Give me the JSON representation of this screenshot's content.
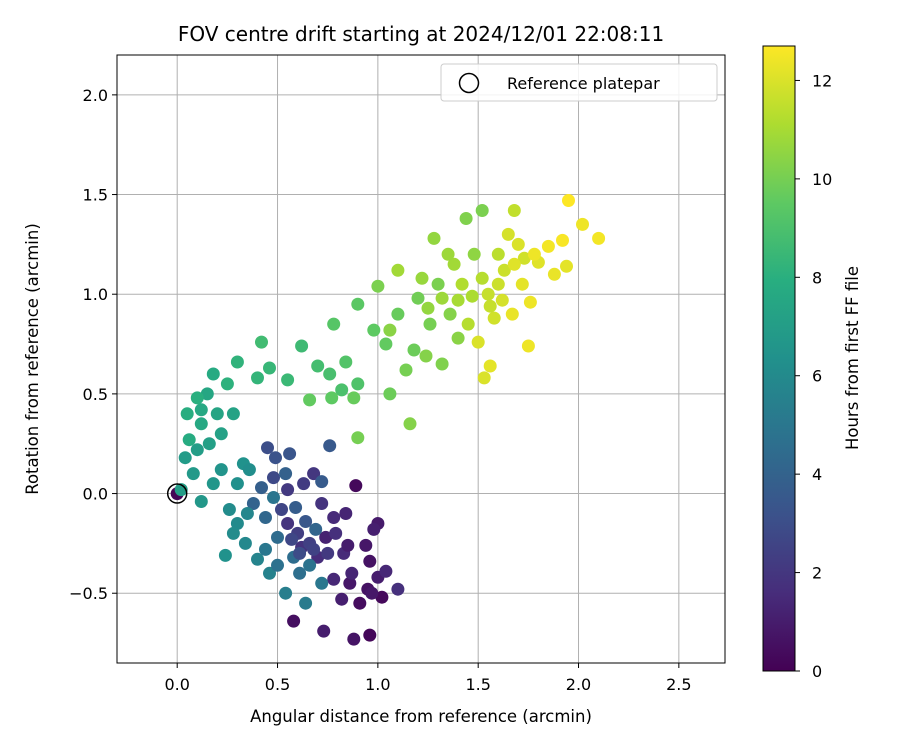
{
  "chart_data": {
    "type": "scatter",
    "title": "FOV centre drift starting at 2024/12/01 22:08:11",
    "xlabel": "Angular distance from reference (arcmin)",
    "ylabel": "Rotation from reference (arcmin)",
    "xlim": [
      -0.3,
      2.73
    ],
    "ylim": [
      -0.85,
      2.2
    ],
    "xticks": [
      0.0,
      0.5,
      1.0,
      1.5,
      2.0,
      2.5
    ],
    "xtick_labels": [
      "0.0",
      "0.5",
      "1.0",
      "1.5",
      "2.0",
      "2.5"
    ],
    "yticks": [
      -0.5,
      0.0,
      0.5,
      1.0,
      1.5,
      2.0
    ],
    "ytick_labels": [
      "−0.5",
      "0.0",
      "0.5",
      "1.0",
      "1.5",
      "2.0"
    ],
    "grid": true,
    "legend": {
      "placement": "upper right",
      "entries": [
        "Reference platepar"
      ]
    },
    "reference_point": {
      "x": 0.0,
      "y": 0.0,
      "marker": "hollow-circle"
    },
    "colorbar": {
      "label": "Hours from first FF file",
      "colormap": "viridis",
      "range": [
        0,
        12.7
      ],
      "ticks": [
        0,
        2,
        4,
        6,
        8,
        10,
        12
      ],
      "tick_labels": [
        "0",
        "2",
        "4",
        "6",
        "8",
        "10",
        "12"
      ]
    },
    "series": [
      {
        "points": [
          [
            0.0,
            0.0,
            0.1
          ],
          [
            0.96,
            -0.71,
            0.2
          ],
          [
            0.91,
            -0.55,
            0.4
          ],
          [
            0.95,
            -0.48,
            0.6
          ],
          [
            0.86,
            -0.45,
            0.8
          ],
          [
            0.73,
            -0.69,
            1.0
          ],
          [
            0.58,
            -0.64,
            0.5
          ],
          [
            0.88,
            -0.73,
            0.7
          ],
          [
            0.89,
            0.04,
            0.3
          ],
          [
            1.0,
            -0.15,
            0.9
          ],
          [
            1.02,
            -0.52,
            0.3
          ],
          [
            0.97,
            -0.5,
            0.8
          ],
          [
            0.82,
            -0.53,
            1.1
          ],
          [
            0.87,
            -0.4,
            1.3
          ],
          [
            0.83,
            -0.3,
            1.5
          ],
          [
            0.78,
            -0.43,
            1.4
          ],
          [
            0.74,
            -0.22,
            1.2
          ],
          [
            0.7,
            -0.32,
            1.6
          ],
          [
            0.62,
            -0.27,
            1.8
          ],
          [
            0.55,
            -0.15,
            1.9
          ],
          [
            0.94,
            -0.26,
            0.8
          ],
          [
            0.96,
            -0.34,
            0.6
          ],
          [
            1.0,
            -0.42,
            1.0
          ],
          [
            1.04,
            -0.39,
            1.4
          ],
          [
            1.1,
            -0.48,
            1.7
          ],
          [
            0.98,
            -0.18,
            1.1
          ],
          [
            0.84,
            -0.1,
            1.3
          ],
          [
            0.78,
            -0.12,
            1.5
          ],
          [
            0.72,
            -0.05,
            1.9
          ],
          [
            0.68,
            0.1,
            2.0
          ],
          [
            0.63,
            0.05,
            2.2
          ],
          [
            0.55,
            0.02,
            2.1
          ],
          [
            0.6,
            -0.2,
            2.3
          ],
          [
            0.66,
            -0.25,
            2.4
          ],
          [
            0.52,
            -0.08,
            2.6
          ],
          [
            0.48,
            0.08,
            2.8
          ],
          [
            0.45,
            0.23,
            3.0
          ],
          [
            0.49,
            0.18,
            3.2
          ],
          [
            0.56,
            0.2,
            3.3
          ],
          [
            0.76,
            0.24,
            3.5
          ],
          [
            0.72,
            0.06,
            3.6
          ],
          [
            0.42,
            0.03,
            3.8
          ],
          [
            0.38,
            -0.05,
            4.0
          ],
          [
            0.44,
            -0.12,
            4.2
          ],
          [
            0.5,
            -0.22,
            4.4
          ],
          [
            0.58,
            -0.32,
            4.5
          ],
          [
            0.66,
            -0.36,
            4.8
          ],
          [
            0.72,
            -0.45,
            5.0
          ],
          [
            0.64,
            -0.55,
            5.2
          ],
          [
            0.54,
            -0.5,
            5.4
          ],
          [
            0.46,
            -0.4,
            5.6
          ],
          [
            0.4,
            -0.33,
            5.7
          ],
          [
            0.34,
            -0.25,
            5.9
          ],
          [
            0.3,
            -0.15,
            6.0
          ],
          [
            0.26,
            -0.08,
            6.1
          ],
          [
            0.3,
            0.05,
            6.3
          ],
          [
            0.33,
            0.15,
            6.4
          ],
          [
            0.22,
            0.12,
            6.5
          ],
          [
            0.18,
            0.05,
            6.6
          ],
          [
            0.12,
            -0.04,
            6.7
          ],
          [
            0.08,
            0.1,
            6.8
          ],
          [
            0.04,
            0.18,
            6.9
          ],
          [
            0.1,
            0.22,
            7.0
          ],
          [
            0.16,
            0.25,
            7.1
          ],
          [
            0.22,
            0.3,
            7.2
          ],
          [
            0.28,
            0.4,
            7.3
          ],
          [
            0.2,
            0.4,
            7.4
          ],
          [
            0.15,
            0.5,
            7.5
          ],
          [
            0.12,
            0.42,
            7.6
          ],
          [
            0.18,
            0.6,
            7.7
          ],
          [
            0.06,
            0.27,
            7.8
          ],
          [
            0.05,
            0.4,
            7.9
          ],
          [
            0.1,
            0.48,
            8.0
          ],
          [
            0.25,
            0.55,
            8.1
          ],
          [
            0.3,
            0.66,
            8.2
          ],
          [
            0.4,
            0.58,
            8.3
          ],
          [
            0.46,
            0.63,
            8.4
          ],
          [
            0.55,
            0.57,
            8.5
          ],
          [
            0.62,
            0.74,
            8.6
          ],
          [
            0.42,
            0.76,
            8.7
          ],
          [
            0.7,
            0.64,
            8.8
          ],
          [
            0.76,
            0.6,
            8.9
          ],
          [
            0.82,
            0.52,
            9.0
          ],
          [
            0.9,
            0.55,
            9.1
          ],
          [
            0.84,
            0.66,
            9.2
          ],
          [
            0.78,
            0.85,
            9.3
          ],
          [
            0.9,
            0.95,
            9.4
          ],
          [
            0.98,
            0.82,
            9.5
          ],
          [
            1.04,
            0.75,
            9.6
          ],
          [
            1.1,
            0.9,
            9.7
          ],
          [
            1.18,
            0.72,
            9.8
          ],
          [
            1.2,
            0.98,
            9.9
          ],
          [
            1.26,
            0.85,
            10.0
          ],
          [
            1.3,
            1.05,
            10.1
          ],
          [
            1.32,
            0.65,
            10.2
          ],
          [
            1.36,
            0.9,
            10.3
          ],
          [
            1.4,
            0.78,
            10.4
          ],
          [
            1.44,
            1.38,
            10.2
          ],
          [
            1.48,
            1.2,
            10.5
          ],
          [
            1.52,
            1.42,
            10.1
          ],
          [
            1.16,
            0.35,
            10.3
          ],
          [
            0.9,
            0.28,
            10.0
          ],
          [
            0.66,
            0.47,
            9.6
          ],
          [
            0.77,
            0.48,
            9.5
          ],
          [
            0.88,
            0.48,
            9.7
          ],
          [
            1.06,
            0.5,
            9.8
          ],
          [
            1.14,
            0.62,
            10.0
          ],
          [
            1.24,
            0.69,
            10.3
          ],
          [
            1.0,
            1.04,
            10.1
          ],
          [
            1.06,
            0.82,
            10.4
          ],
          [
            0.02,
            0.02,
            7.0
          ],
          [
            0.12,
            0.35,
            7.6
          ],
          [
            0.35,
            -0.1,
            5.8
          ],
          [
            0.44,
            -0.28,
            5.0
          ],
          [
            0.5,
            -0.36,
            4.7
          ],
          [
            0.61,
            -0.4,
            4.6
          ],
          [
            0.69,
            -0.18,
            4.1
          ],
          [
            0.28,
            -0.2,
            6.1
          ],
          [
            0.24,
            -0.31,
            6.4
          ],
          [
            0.36,
            0.12,
            6.2
          ],
          [
            0.48,
            -0.02,
            4.9
          ],
          [
            0.54,
            0.1,
            3.9
          ],
          [
            0.59,
            -0.07,
            3.7
          ],
          [
            0.64,
            -0.14,
            3.4
          ],
          [
            0.61,
            -0.3,
            2.9
          ],
          [
            0.57,
            -0.23,
            2.7
          ],
          [
            0.68,
            -0.28,
            2.5
          ],
          [
            0.75,
            -0.3,
            2.1
          ],
          [
            0.79,
            -0.2,
            1.7
          ],
          [
            0.85,
            -0.26,
            1.0
          ],
          [
            1.52,
            1.08,
            11.3
          ],
          [
            1.55,
            1.0,
            11.6
          ],
          [
            1.58,
            0.88,
            11.8
          ],
          [
            1.6,
            1.2,
            11.4
          ],
          [
            1.65,
            1.3,
            11.9
          ],
          [
            1.68,
            1.42,
            11.5
          ],
          [
            1.7,
            1.25,
            12.0
          ],
          [
            1.72,
            1.05,
            12.2
          ],
          [
            1.76,
            0.96,
            12.4
          ],
          [
            1.8,
            1.16,
            12.1
          ],
          [
            1.85,
            1.24,
            12.5
          ],
          [
            1.88,
            1.1,
            12.3
          ],
          [
            1.92,
            1.27,
            12.6
          ],
          [
            1.95,
            1.47,
            12.7
          ],
          [
            2.02,
            1.35,
            12.4
          ],
          [
            2.1,
            1.28,
            12.5
          ],
          [
            1.94,
            1.14,
            12.2
          ],
          [
            1.73,
            1.18,
            11.8
          ],
          [
            1.63,
            1.12,
            11.7
          ],
          [
            1.5,
            0.76,
            12.0
          ],
          [
            1.56,
            0.64,
            12.2
          ],
          [
            1.53,
            0.58,
            12.0
          ],
          [
            1.67,
            0.9,
            12.3
          ],
          [
            1.75,
            0.74,
            12.4
          ],
          [
            1.47,
            0.99,
            11.1
          ],
          [
            1.42,
            1.05,
            11.2
          ],
          [
            1.38,
            1.15,
            10.9
          ],
          [
            1.35,
            1.2,
            10.8
          ],
          [
            1.28,
            1.28,
            10.6
          ],
          [
            1.22,
            1.08,
            10.7
          ],
          [
            1.1,
            1.12,
            10.9
          ],
          [
            1.25,
            0.93,
            10.6
          ],
          [
            1.32,
            0.98,
            10.8
          ],
          [
            1.4,
            0.97,
            11.0
          ],
          [
            1.45,
            0.85,
            11.3
          ],
          [
            1.56,
            0.94,
            11.6
          ],
          [
            1.6,
            1.05,
            11.7
          ],
          [
            1.62,
            0.97,
            11.9
          ],
          [
            1.68,
            1.15,
            12.1
          ],
          [
            1.78,
            1.2,
            12.4
          ]
        ]
      }
    ]
  }
}
